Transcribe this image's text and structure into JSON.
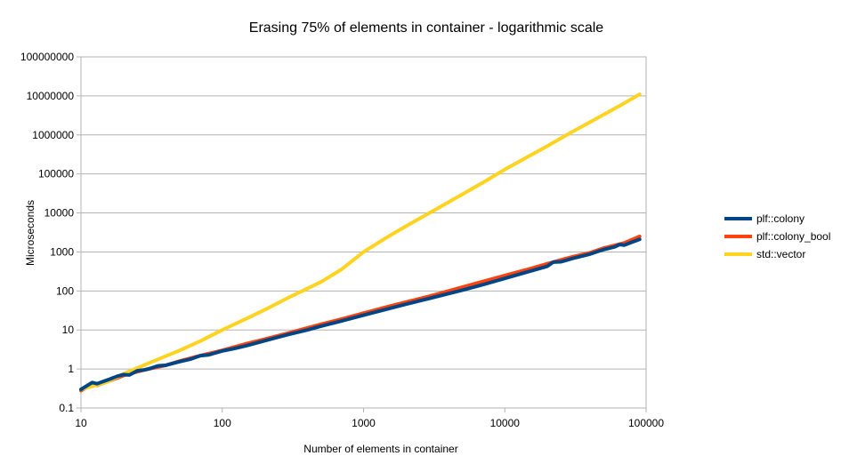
{
  "chart_data": {
    "type": "line",
    "title": "Erasing 75% of elements in container - logarithmic scale",
    "xlabel": "Number of elements in container",
    "ylabel": "Microseconds",
    "x_scale": "log",
    "y_scale": "log",
    "xlim": [
      10,
      100000
    ],
    "ylim": [
      0.1,
      100000000
    ],
    "x_ticks": [
      "10",
      "100",
      "1000",
      "10000",
      "100000"
    ],
    "y_ticks": [
      "0.1",
      "1",
      "10",
      "100",
      "1000",
      "10000",
      "100000",
      "1000000",
      "10000000",
      "100000000"
    ],
    "grid": "horizontal",
    "legend_position": "right",
    "series": [
      {
        "name": "plf::colony_bool",
        "color": "#ff420e",
        "points": [
          [
            10,
            0.28
          ],
          [
            12,
            0.4
          ],
          [
            13,
            0.38
          ],
          [
            16,
            0.5
          ],
          [
            20,
            0.68
          ],
          [
            25,
            0.85
          ],
          [
            30,
            1.0
          ],
          [
            40,
            1.25
          ],
          [
            50,
            1.6
          ],
          [
            70,
            2.2
          ],
          [
            100,
            3.0
          ],
          [
            150,
            4.5
          ],
          [
            200,
            5.8
          ],
          [
            300,
            8.5
          ],
          [
            500,
            14
          ],
          [
            700,
            19
          ],
          [
            1000,
            27
          ],
          [
            1500,
            40
          ],
          [
            2000,
            52
          ],
          [
            3000,
            75
          ],
          [
            5000,
            125
          ],
          [
            7000,
            175
          ],
          [
            10000,
            250
          ],
          [
            15000,
            370
          ],
          [
            20000,
            500
          ],
          [
            30000,
            750
          ],
          [
            40000,
            950
          ],
          [
            50000,
            1250
          ],
          [
            70000,
            1700
          ],
          [
            90000,
            2500
          ]
        ]
      },
      {
        "name": "std::vector",
        "color": "#ffd320",
        "points": [
          [
            10,
            0.3
          ],
          [
            15,
            0.45
          ],
          [
            20,
            0.75
          ],
          [
            30,
            1.4
          ],
          [
            50,
            3.0
          ],
          [
            70,
            5.2
          ],
          [
            100,
            10
          ],
          [
            150,
            20
          ],
          [
            200,
            33
          ],
          [
            300,
            70
          ],
          [
            500,
            170
          ],
          [
            700,
            360
          ],
          [
            1000,
            1000
          ],
          [
            1500,
            2500
          ],
          [
            2000,
            4600
          ],
          [
            3000,
            10500
          ],
          [
            5000,
            30000
          ],
          [
            7000,
            60000
          ],
          [
            10000,
            130000
          ],
          [
            20000,
            520000
          ],
          [
            30000,
            1200000
          ],
          [
            50000,
            3300000
          ],
          [
            70000,
            6500000
          ],
          [
            90000,
            11000000
          ]
        ]
      },
      {
        "name": "plf::colony",
        "color": "#004586",
        "points": [
          [
            10,
            0.3
          ],
          [
            12,
            0.45
          ],
          [
            13,
            0.42
          ],
          [
            16,
            0.55
          ],
          [
            18,
            0.65
          ],
          [
            20,
            0.72
          ],
          [
            22,
            0.7
          ],
          [
            25,
            0.9
          ],
          [
            28,
            0.95
          ],
          [
            30,
            1.0
          ],
          [
            35,
            1.2
          ],
          [
            40,
            1.25
          ],
          [
            50,
            1.55
          ],
          [
            60,
            1.8
          ],
          [
            70,
            2.2
          ],
          [
            80,
            2.3
          ],
          [
            100,
            2.9
          ],
          [
            120,
            3.3
          ],
          [
            150,
            4.0
          ],
          [
            200,
            5.3
          ],
          [
            250,
            6.6
          ],
          [
            300,
            7.8
          ],
          [
            400,
            10
          ],
          [
            500,
            12.5
          ],
          [
            700,
            17
          ],
          [
            1000,
            24
          ],
          [
            1500,
            35
          ],
          [
            2000,
            46
          ],
          [
            3000,
            66
          ],
          [
            5000,
            105
          ],
          [
            7000,
            145
          ],
          [
            10000,
            210
          ],
          [
            15000,
            320
          ],
          [
            20000,
            430
          ],
          [
            22000,
            550
          ],
          [
            25000,
            560
          ],
          [
            30000,
            680
          ],
          [
            40000,
            880
          ],
          [
            50000,
            1150
          ],
          [
            60000,
            1350
          ],
          [
            65000,
            1550
          ],
          [
            70000,
            1500
          ],
          [
            80000,
            1800
          ],
          [
            90000,
            2100
          ]
        ]
      }
    ],
    "legend_order": [
      "plf::colony",
      "plf::colony_bool",
      "std::vector"
    ]
  }
}
